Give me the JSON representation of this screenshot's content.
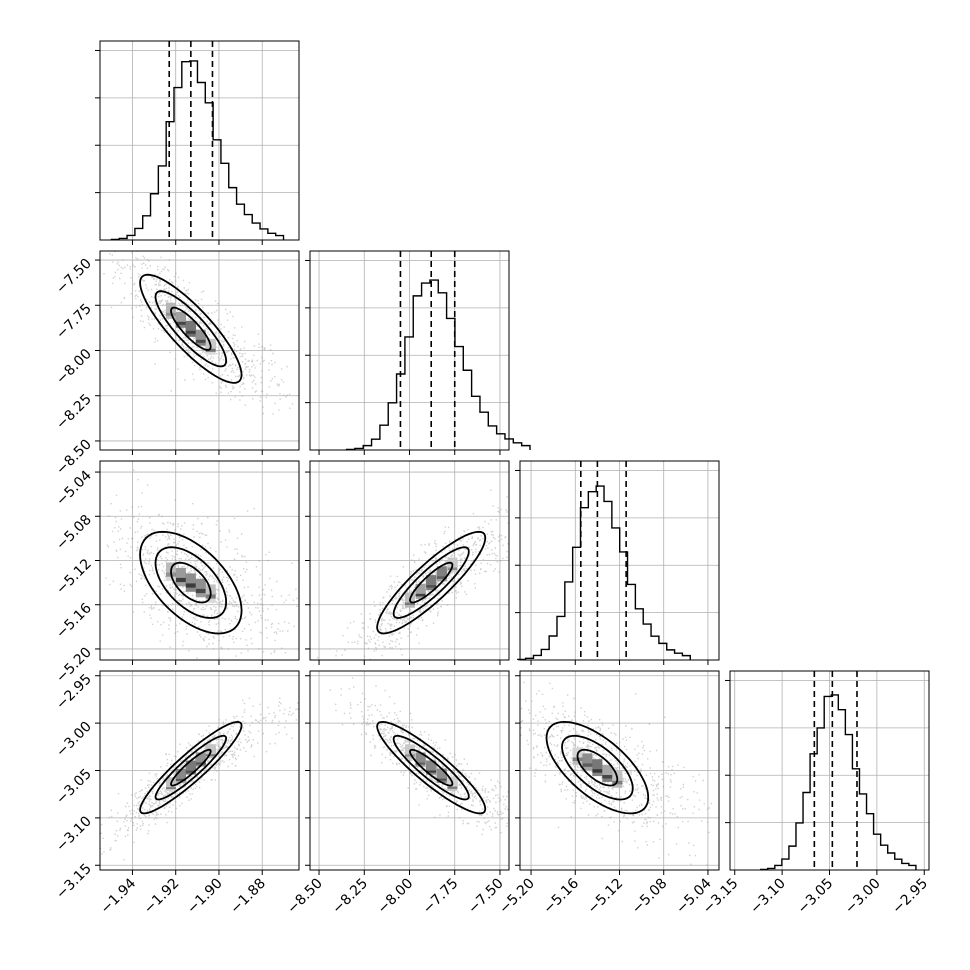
{
  "chart_data": {
    "type": "corner",
    "grid": true,
    "parameters": [
      {
        "median": -1.913,
        "q16": -1.923,
        "q84": -1.903,
        "sd": 0.0102,
        "range": [
          -1.955,
          -1.863
        ],
        "ticks": [
          "−1.94",
          "−1.92",
          "−1.90",
          "−1.88"
        ],
        "tick_values": [
          -1.94,
          -1.92,
          -1.9,
          -1.88
        ]
      },
      {
        "median": -7.88,
        "q16": -8.05,
        "q84": -7.75,
        "sd": 0.13,
        "range": [
          -8.55,
          -7.45
        ],
        "ticks": [
          "−8.50",
          "−8.25",
          "−8.00",
          "−7.75",
          "−7.50"
        ],
        "tick_values": [
          -8.5,
          -8.25,
          -8.0,
          -7.75,
          -7.5
        ]
      },
      {
        "median": -5.14,
        "q16": -5.155,
        "q84": -5.114,
        "sd": 0.02,
        "range": [
          -5.21,
          -5.03
        ],
        "ticks": [
          "−5.20",
          "−5.16",
          "−5.12",
          "−5.08",
          "−5.04"
        ],
        "tick_values": [
          -5.2,
          -5.16,
          -5.12,
          -5.08,
          -5.04
        ]
      },
      {
        "median": -3.047,
        "q16": -3.066,
        "q84": -3.021,
        "sd": 0.021,
        "range": [
          -3.155,
          -2.945
        ],
        "ticks": [
          "−3.15",
          "−3.10",
          "−3.05",
          "−3.00",
          "−2.95"
        ],
        "tick_values": [
          -3.15,
          -3.1,
          -3.05,
          -3.0,
          -2.95
        ]
      }
    ],
    "correlations": {
      "1-0": -0.85,
      "2-0": -0.55,
      "2-1": 0.88,
      "3-0": 0.92,
      "3-1": -0.9,
      "3-2": -0.65
    }
  }
}
